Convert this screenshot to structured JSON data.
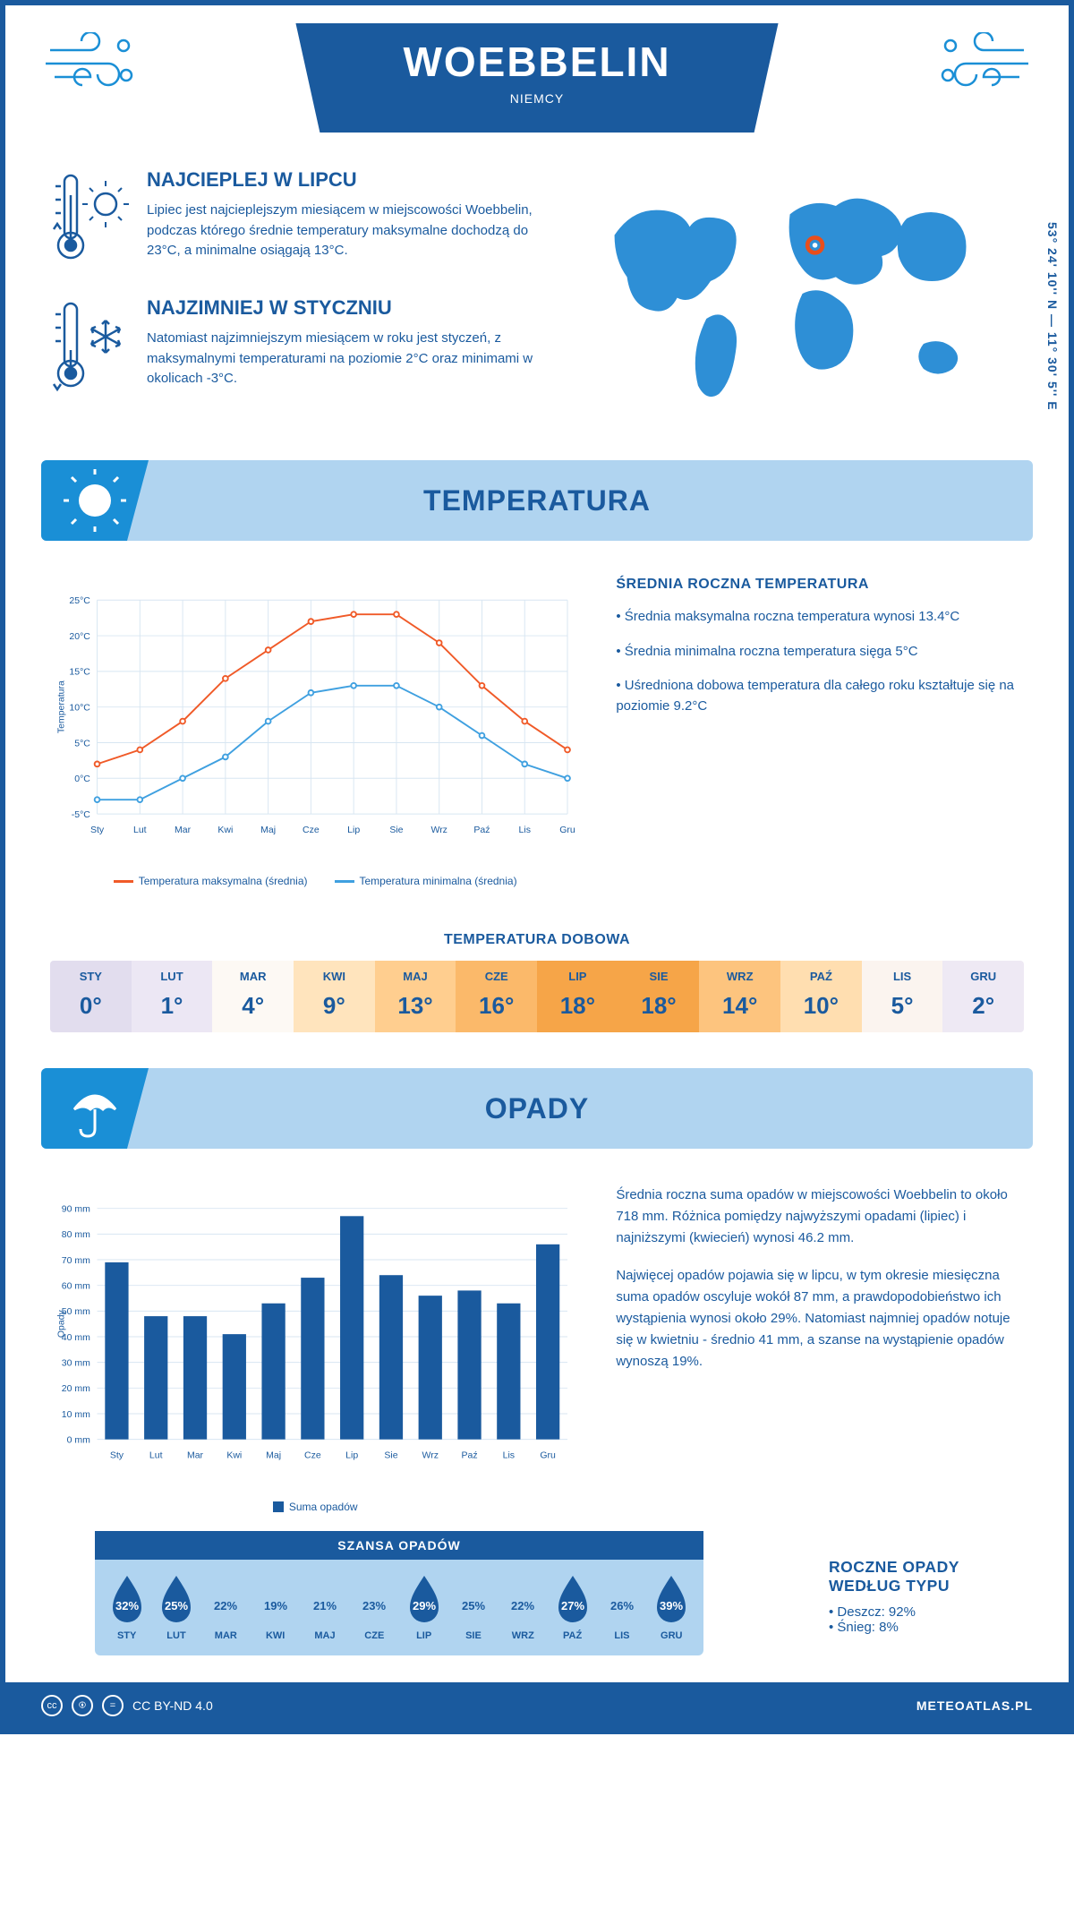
{
  "header": {
    "title": "WOEBBELIN",
    "country": "NIEMCY"
  },
  "coords": "53° 24' 10'' N — 11° 30' 5'' E",
  "intro": {
    "hot": {
      "title": "NAJCIEPLEJ W LIPCU",
      "text": "Lipiec jest najcieplejszym miesiącem w miejscowości Woebbelin, podczas którego średnie temperatury maksymalne dochodzą do 23°C, a minimalne osiągają 13°C."
    },
    "cold": {
      "title": "NAJZIMNIEJ W STYCZNIU",
      "text": "Natomiast najzimniejszym miesiącem w roku jest styczeń, z maksymalnymi temperaturami na poziomie 2°C oraz minimami w okolicach -3°C."
    }
  },
  "section_temp_title": "TEMPERATURA",
  "section_precip_title": "OPADY",
  "temp_chart": {
    "months": [
      "Sty",
      "Lut",
      "Mar",
      "Kwi",
      "Maj",
      "Cze",
      "Lip",
      "Sie",
      "Wrz",
      "Paź",
      "Lis",
      "Gru"
    ],
    "max_values": [
      2,
      4,
      8,
      14,
      18,
      22,
      23,
      23,
      19,
      13,
      8,
      4
    ],
    "min_values": [
      -3,
      -3,
      0,
      3,
      8,
      12,
      13,
      13,
      10,
      6,
      2,
      0
    ],
    "max_color": "#f05a28",
    "min_color": "#3fa0e0",
    "grid_color": "#d8e6f2",
    "axis_color": "#1a5a9e",
    "ymin": -5,
    "ymax": 25,
    "ystep": 5,
    "ylabel": "Temperatura",
    "line_width": 2,
    "marker_size": 3,
    "legend_max": "Temperatura maksymalna (średnia)",
    "legend_min": "Temperatura minimalna (średnia)"
  },
  "temp_info": {
    "head": "ŚREDNIA ROCZNA TEMPERATURA",
    "b1": "• Średnia maksymalna roczna temperatura wynosi 13.4°C",
    "b2": "• Średnia minimalna roczna temperatura sięga 5°C",
    "b3": "• Uśredniona dobowa temperatura dla całego roku kształtuje się na poziomie 9.2°C"
  },
  "daily_title": "TEMPERATURA DOBOWA",
  "daily": {
    "months": [
      "STY",
      "LUT",
      "MAR",
      "KWI",
      "MAJ",
      "CZE",
      "LIP",
      "SIE",
      "WRZ",
      "PAŹ",
      "LIS",
      "GRU"
    ],
    "values": [
      "0°",
      "1°",
      "4°",
      "9°",
      "13°",
      "16°",
      "18°",
      "18°",
      "14°",
      "10°",
      "5°",
      "2°"
    ],
    "colors": [
      "#e2ddee",
      "#ece7f4",
      "#fdf9f4",
      "#ffe4bd",
      "#ffce8f",
      "#fbb96a",
      "#f6a548",
      "#f6a548",
      "#fdc47e",
      "#ffdeb0",
      "#fbf4ef",
      "#eee9f4"
    ]
  },
  "precip_chart": {
    "months": [
      "Sty",
      "Lut",
      "Mar",
      "Kwi",
      "Maj",
      "Cze",
      "Lip",
      "Sie",
      "Wrz",
      "Paź",
      "Lis",
      "Gru"
    ],
    "values": [
      69,
      48,
      48,
      41,
      53,
      63,
      87,
      64,
      56,
      58,
      53,
      76
    ],
    "bar_color": "#1a5a9e",
    "grid_color": "#d8e6f2",
    "ymin": 0,
    "ymax": 90,
    "ystep": 10,
    "ylabel": "Opady",
    "legend": "Suma opadów"
  },
  "precip_info": {
    "p1": "Średnia roczna suma opadów w miejscowości Woebbelin to około 718 mm. Różnica pomiędzy najwyższymi opadami (lipiec) i najniższymi (kwiecień) wynosi 46.2 mm.",
    "p2": "Najwięcej opadów pojawia się w lipcu, w tym okresie miesięczna suma opadów oscyluje wokół 87 mm, a prawdopodobieństwo ich wystąpienia wynosi około 29%. Natomiast najmniej opadów notuje się w kwietniu - średnio 41 mm, a szanse na wystąpienie opadów wynoszą 19%."
  },
  "chance": {
    "title": "SZANSA OPADÓW",
    "months": [
      "STY",
      "LUT",
      "MAR",
      "KWI",
      "MAJ",
      "CZE",
      "LIP",
      "SIE",
      "WRZ",
      "PAŹ",
      "LIS",
      "GRU"
    ],
    "values": [
      "32%",
      "25%",
      "22%",
      "19%",
      "21%",
      "23%",
      "29%",
      "25%",
      "22%",
      "27%",
      "26%",
      "39%"
    ],
    "fill_dark": "#1a5a9e",
    "fill_light": "#b0d4f0",
    "dark_idx": [
      0,
      1,
      6,
      9,
      11
    ]
  },
  "precip_type": {
    "head": "ROCZNE OPADY WEDŁUG TYPU",
    "rain": "• Deszcz: 92%",
    "snow": "• Śnieg: 8%"
  },
  "footer": {
    "license": "CC BY-ND 4.0",
    "site": "METEOATLAS.PL"
  },
  "map": {
    "marker_color": "#e94e1b"
  }
}
